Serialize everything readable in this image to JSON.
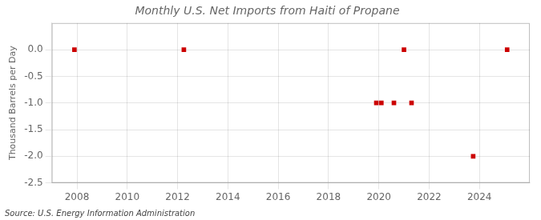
{
  "chart_data": {
    "type": "scatter",
    "title": "Monthly U.S. Net Imports from Haiti of Propane",
    "y_label": "Thousand Barrels per Day",
    "annotation": "Source: U.S. Energy Information Administration",
    "x": [
      2007.9,
      2012.25,
      2019.9,
      2020.1,
      2020.6,
      2021.0,
      2021.3,
      2023.75,
      2025.1
    ],
    "values": [
      0.0,
      0.0,
      -1.0,
      -1.0,
      -1.0,
      0.0,
      -1.0,
      -2.0,
      0.0
    ],
    "color": "#cc0000",
    "marker": "square",
    "xlim": [
      2007.0,
      2026.0
    ],
    "xticks": [
      2008,
      2010,
      2012,
      2014,
      2016,
      2018,
      2020,
      2022,
      2024
    ],
    "ylim": [
      -2.5,
      0.5
    ],
    "yticks": [
      {
        "value": 0.0,
        "label": "0.0"
      },
      -0.5,
      {
        "value": -1.0,
        "label": "-1.0"
      },
      -1.5,
      {
        "value": -2.0,
        "label": "-2.0"
      },
      -2.5
    ],
    "grid": true
  }
}
